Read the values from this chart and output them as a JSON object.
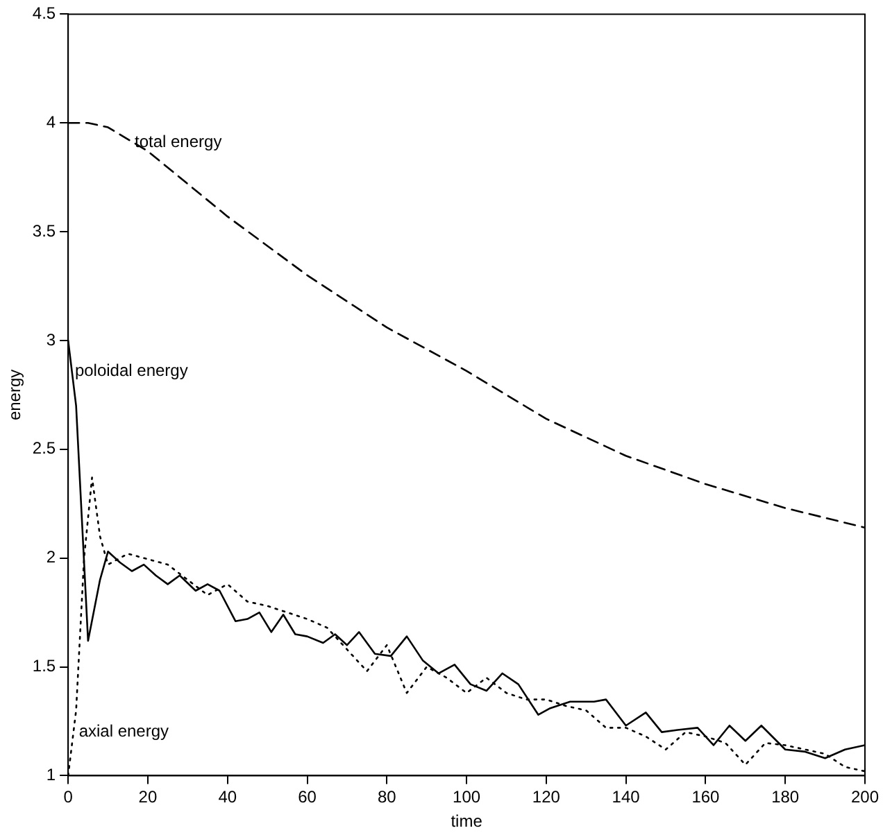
{
  "chart_data": {
    "type": "line",
    "xlabel": "time",
    "ylabel": "energy",
    "xlim": [
      0,
      200
    ],
    "ylim": [
      1,
      4.5
    ],
    "xticks": [
      0,
      20,
      40,
      60,
      80,
      100,
      120,
      140,
      160,
      180,
      200
    ],
    "yticks": [
      1,
      1.5,
      2,
      2.5,
      3,
      3.5,
      4,
      4.5
    ],
    "grid": false,
    "legend": false,
    "marker": "none",
    "annotations": [
      {
        "text": "total energy",
        "x": 16,
        "y": 3.91
      },
      {
        "text": "poloidal energy",
        "x": 1,
        "y": 2.86
      },
      {
        "text": "axial energy",
        "x": 2,
        "y": 1.2
      }
    ],
    "series": [
      {
        "color": "#000000",
        "line_style": "dashed",
        "x": [
          0,
          5,
          10,
          20,
          30,
          40,
          60,
          80,
          100,
          120,
          140,
          160,
          180,
          200
        ],
        "values": [
          4.0,
          4.0,
          3.98,
          3.87,
          3.72,
          3.57,
          3.3,
          3.06,
          2.86,
          2.64,
          2.47,
          2.34,
          2.23,
          2.14
        ]
      },
      {
        "color": "#000000",
        "line_style": "solid",
        "x": [
          0,
          2,
          5,
          8,
          10,
          13,
          16,
          19,
          22,
          25,
          28,
          32,
          35,
          38,
          42,
          45,
          48,
          51,
          54,
          57,
          60,
          64,
          67,
          70,
          73,
          77,
          81,
          85,
          89,
          93,
          97,
          101,
          105,
          109,
          113,
          118,
          121,
          126,
          132,
          135,
          140,
          145,
          149,
          153,
          158,
          162,
          166,
          170,
          174,
          180,
          185,
          190,
          195,
          200
        ],
        "values": [
          3.0,
          2.7,
          1.62,
          1.9,
          2.03,
          1.98,
          1.94,
          1.97,
          1.92,
          1.88,
          1.92,
          1.85,
          1.88,
          1.85,
          1.71,
          1.72,
          1.75,
          1.66,
          1.74,
          1.65,
          1.64,
          1.61,
          1.65,
          1.6,
          1.66,
          1.56,
          1.55,
          1.64,
          1.53,
          1.47,
          1.51,
          1.42,
          1.39,
          1.47,
          1.42,
          1.28,
          1.31,
          1.34,
          1.34,
          1.35,
          1.23,
          1.29,
          1.2,
          1.21,
          1.22,
          1.14,
          1.23,
          1.16,
          1.23,
          1.12,
          1.11,
          1.08,
          1.12,
          1.14
        ]
      },
      {
        "color": "#000000",
        "line_style": "dotted",
        "x": [
          0,
          2,
          4,
          6,
          8,
          10,
          15,
          25,
          30,
          35,
          40,
          45,
          50,
          55,
          60,
          65,
          70,
          75,
          80,
          85,
          90,
          95,
          100,
          105,
          110,
          115,
          120,
          125,
          130,
          135,
          140,
          145,
          150,
          155,
          160,
          165,
          170,
          175,
          180,
          185,
          190,
          195,
          200
        ],
        "values": [
          1.0,
          1.3,
          2.0,
          2.37,
          2.1,
          1.97,
          2.02,
          1.97,
          1.9,
          1.83,
          1.88,
          1.8,
          1.78,
          1.75,
          1.72,
          1.68,
          1.58,
          1.48,
          1.6,
          1.38,
          1.5,
          1.45,
          1.38,
          1.45,
          1.38,
          1.35,
          1.35,
          1.32,
          1.3,
          1.22,
          1.22,
          1.18,
          1.12,
          1.2,
          1.18,
          1.15,
          1.05,
          1.15,
          1.14,
          1.12,
          1.1,
          1.04,
          1.02
        ]
      }
    ]
  }
}
